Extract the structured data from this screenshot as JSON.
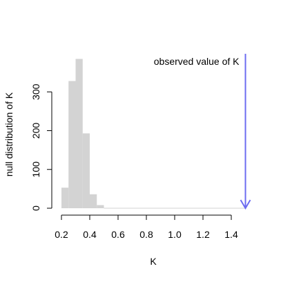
{
  "chart_data": {
    "type": "bar",
    "title": "",
    "xlabel": "K",
    "ylabel": "null distribution of K",
    "xlim": [
      0.15,
      1.55
    ],
    "ylim": [
      0,
      400
    ],
    "x_ticks": [
      "0.2",
      "0.4",
      "0.6",
      "0.8",
      "1.0",
      "1.2",
      "1.4"
    ],
    "y_ticks": [
      "0",
      "100",
      "200",
      "300"
    ],
    "bin_width": 0.05,
    "bins": [
      {
        "start": 0.2,
        "end": 0.25,
        "count": 53
      },
      {
        "start": 0.25,
        "end": 0.3,
        "count": 328
      },
      {
        "start": 0.3,
        "end": 0.35,
        "count": 385
      },
      {
        "start": 0.35,
        "end": 0.4,
        "count": 193
      },
      {
        "start": 0.4,
        "end": 0.45,
        "count": 36
      },
      {
        "start": 0.45,
        "end": 0.5,
        "count": 8
      },
      {
        "start": 0.5,
        "end": 1.5,
        "count": 0
      }
    ],
    "bar_color": "#d3d3d3",
    "annotation": {
      "label": "observed value of K",
      "x": 1.5,
      "color": "#6c6cf0"
    }
  }
}
